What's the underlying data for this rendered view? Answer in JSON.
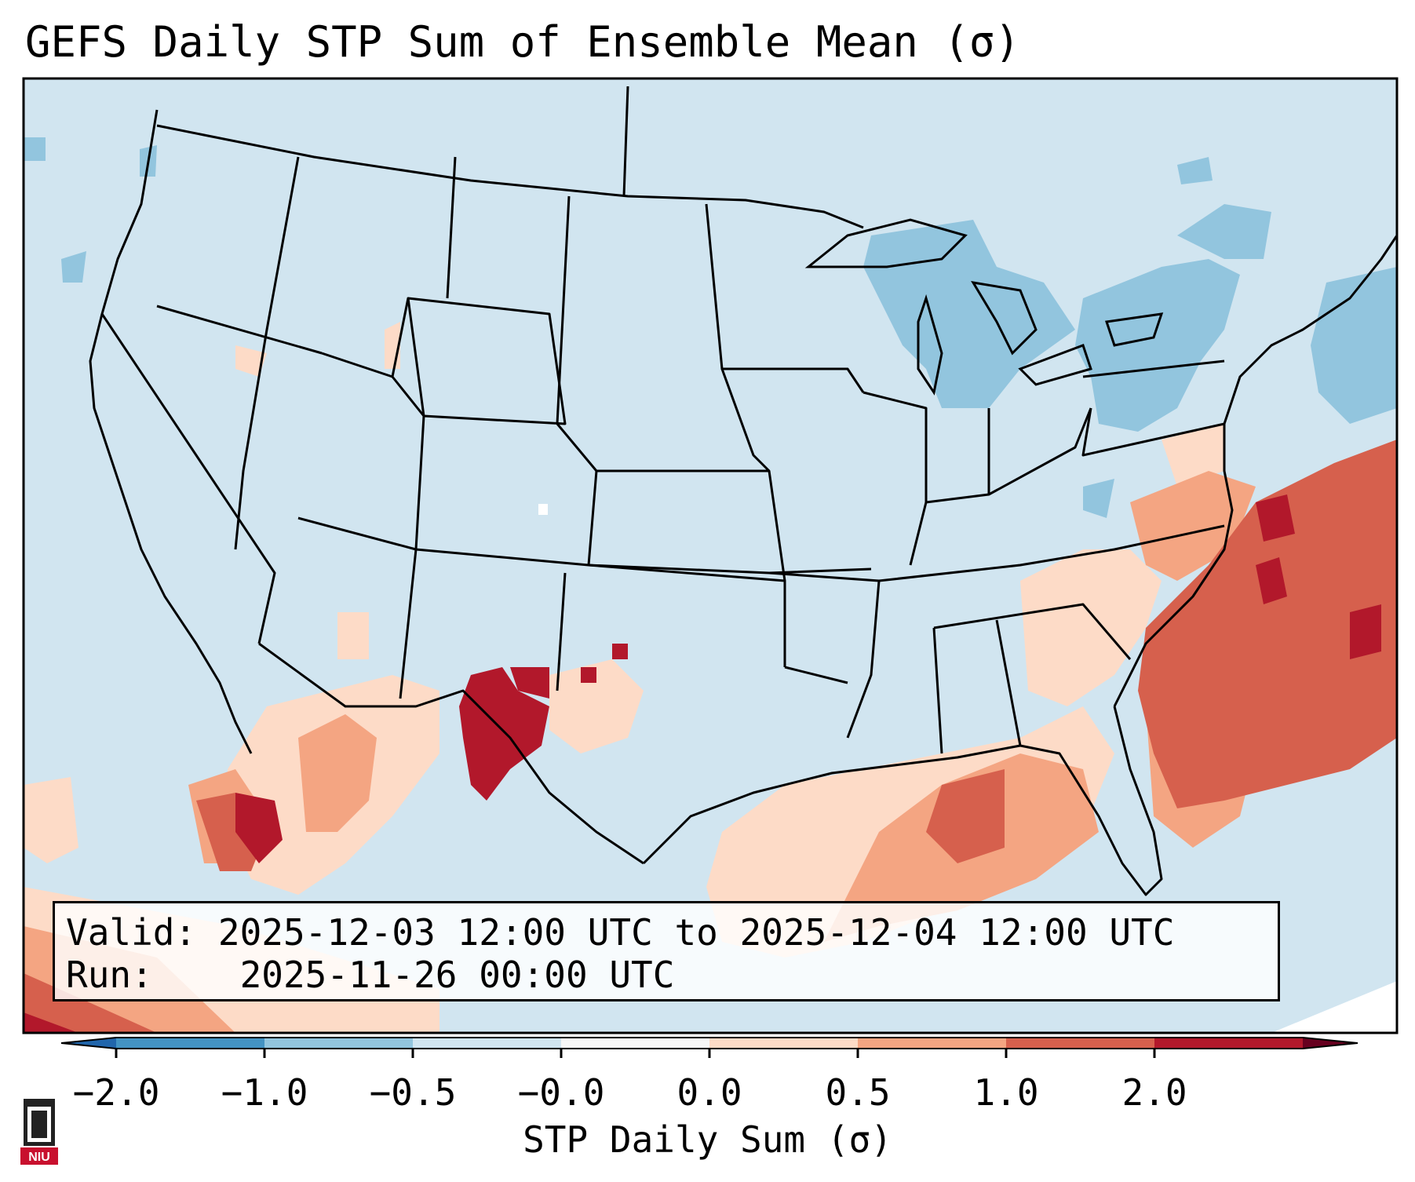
{
  "title": "GEFS Daily STP Sum of Ensemble Mean (σ)",
  "info": {
    "valid_label": "Valid:",
    "valid_value": "2025-12-03 12:00 UTC to 2025-12-04 12:00 UTC",
    "run_label": "Run:",
    "run_value": "2025-11-26 00:00 UTC"
  },
  "colorbar": {
    "label": "STP Daily Sum (σ)",
    "ticks": [
      "−2.0",
      "−1.0",
      "−0.5",
      "−0.0",
      "0.0",
      "0.5",
      "1.0",
      "2.0"
    ],
    "colors": [
      "#4393c3",
      "#92c5de",
      "#d1e5f0",
      "#f7f7f7",
      "#fddbc7",
      "#f4a582",
      "#d6604d",
      "#b2182b"
    ],
    "under_color": "#2166ac",
    "over_color": "#67001f"
  },
  "map": {
    "background_color": "#d1e5f0",
    "border_color": "#000000"
  },
  "logo": {
    "text": "NIU",
    "color": "#c8102e"
  }
}
